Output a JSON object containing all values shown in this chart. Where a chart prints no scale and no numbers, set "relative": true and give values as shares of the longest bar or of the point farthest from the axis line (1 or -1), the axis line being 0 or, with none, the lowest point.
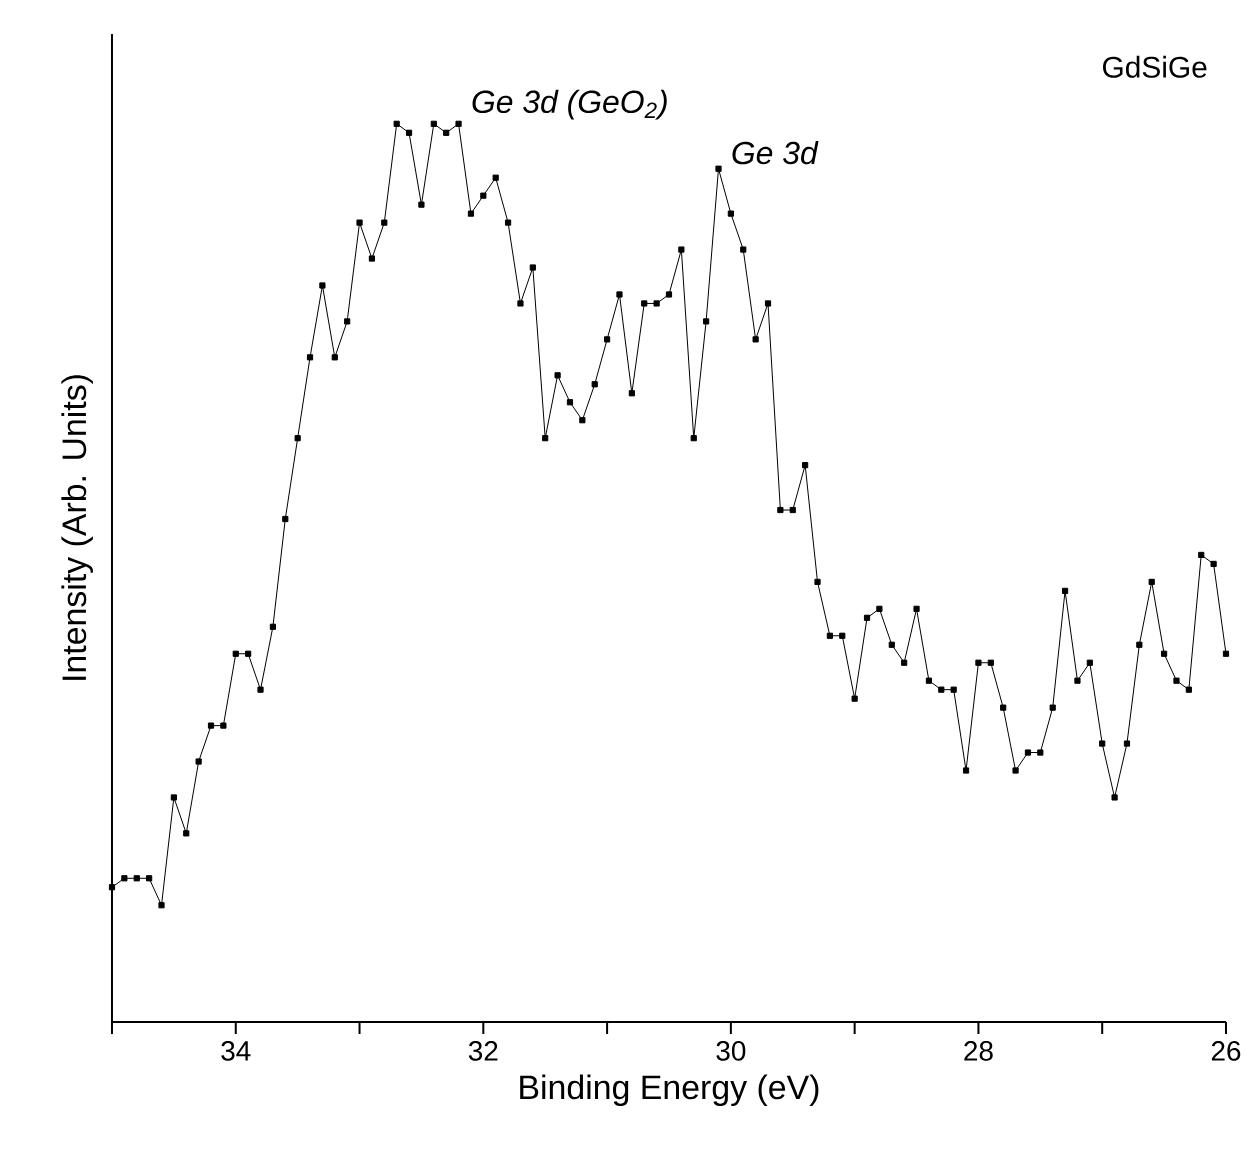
{
  "chart_data": {
    "type": "line",
    "title": "GdSiGe",
    "xlabel": "Binding Energy (eV)",
    "ylabel": "Intensity (Arb. Units)",
    "relative": true,
    "color": "#000000",
    "marker": "square",
    "line_style": "solid",
    "xlim": [
      35,
      26
    ],
    "xticks": [
      {
        "value": 35,
        "label": null
      },
      {
        "value": 34,
        "label": "34"
      },
      {
        "value": 33,
        "label": null
      },
      {
        "value": 32,
        "label": "32"
      },
      {
        "value": 31,
        "label": null
      },
      {
        "value": 30,
        "label": "30"
      },
      {
        "value": 29,
        "label": null
      },
      {
        "value": 28,
        "label": "28"
      },
      {
        "value": 27,
        "label": null
      },
      {
        "value": 26,
        "label": "26"
      }
    ],
    "x": [
      35.0,
      34.9,
      34.8,
      34.7,
      34.6,
      34.5,
      34.4,
      34.3,
      34.2,
      34.1,
      34.0,
      33.9,
      33.8,
      33.7,
      33.6,
      33.5,
      33.4,
      33.3,
      33.2,
      33.1,
      33.0,
      32.9,
      32.8,
      32.7,
      32.6,
      32.5,
      32.4,
      32.3,
      32.2,
      32.1,
      32.0,
      31.9,
      31.8,
      31.7,
      31.6,
      31.5,
      31.4,
      31.3,
      31.2,
      31.1,
      31.0,
      30.9,
      30.8,
      30.7,
      30.6,
      30.5,
      30.4,
      30.3,
      30.2,
      30.1,
      30.0,
      29.9,
      29.8,
      29.7,
      29.6,
      29.5,
      29.4,
      29.3,
      29.2,
      29.1,
      29.0,
      28.9,
      28.8,
      28.7,
      28.6,
      28.5,
      28.4,
      28.3,
      28.2,
      28.1,
      28.0,
      27.9,
      27.8,
      27.7,
      27.6,
      27.5,
      27.4,
      27.3,
      27.2,
      27.1,
      27.0,
      26.9,
      26.8,
      26.7,
      26.6,
      26.5,
      26.4,
      26.3,
      26.2,
      26.1,
      26.0
    ],
    "values": [
      0.15,
      0.16,
      0.16,
      0.16,
      0.13,
      0.25,
      0.21,
      0.29,
      0.33,
      0.33,
      0.41,
      0.41,
      0.37,
      0.44,
      0.56,
      0.65,
      0.74,
      0.82,
      0.74,
      0.78,
      0.89,
      0.85,
      0.89,
      1.0,
      0.99,
      0.91,
      1.0,
      0.99,
      1.0,
      0.9,
      0.92,
      0.94,
      0.89,
      0.8,
      0.84,
      0.65,
      0.72,
      0.69,
      0.67,
      0.71,
      0.76,
      0.81,
      0.7,
      0.8,
      0.8,
      0.81,
      0.86,
      0.65,
      0.78,
      0.95,
      0.9,
      0.86,
      0.76,
      0.8,
      0.57,
      0.57,
      0.62,
      0.49,
      0.43,
      0.43,
      0.36,
      0.45,
      0.46,
      0.42,
      0.4,
      0.46,
      0.38,
      0.37,
      0.37,
      0.28,
      0.4,
      0.4,
      0.35,
      0.28,
      0.3,
      0.3,
      0.35,
      0.48,
      0.38,
      0.4,
      0.31,
      0.25,
      0.31,
      0.42,
      0.49,
      0.41,
      0.38,
      0.37,
      0.52,
      0.51,
      0.41
    ],
    "annotations": [
      {
        "text": "Ge 3d (GeO$_{2}$)",
        "x": 32.2,
        "y": 1.0
      },
      {
        "text": "Ge 3d",
        "x": 30.1,
        "y": 0.95
      }
    ]
  }
}
